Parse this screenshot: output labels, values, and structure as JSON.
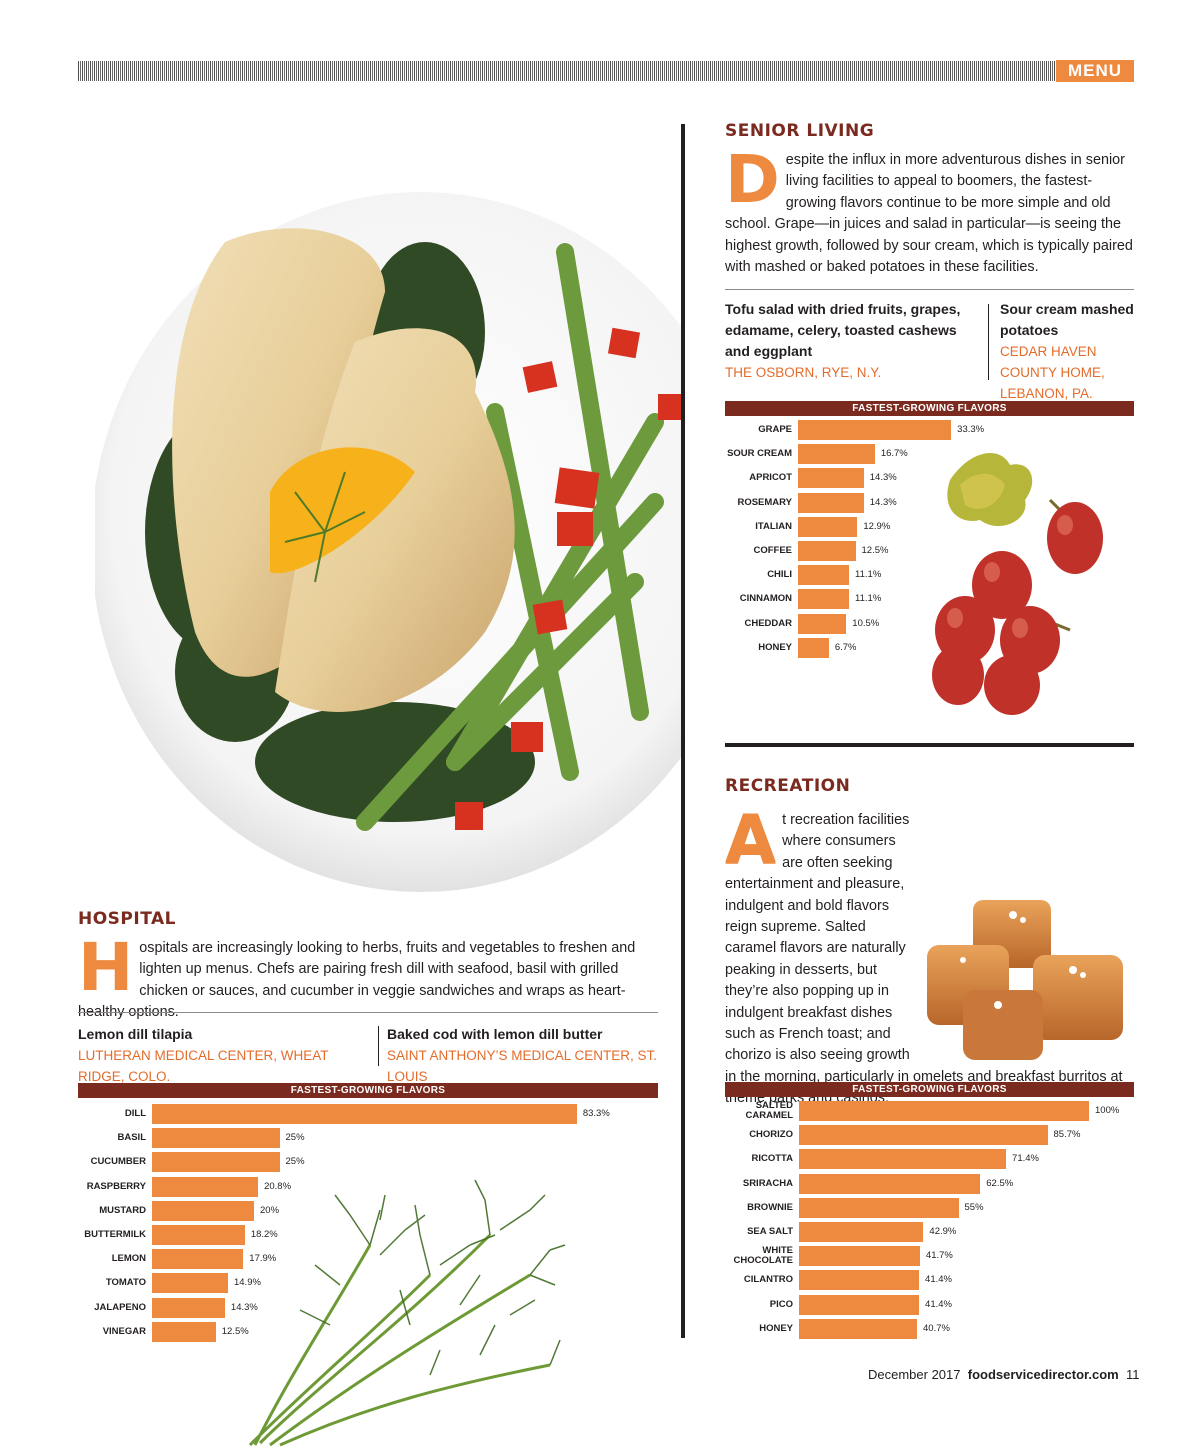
{
  "header": {
    "section_tag": "MENU"
  },
  "senior": {
    "title": "SENIOR LIVING",
    "dropcap": "D",
    "body": "espite the influx in more adventurous dishes in senior living facilities to appeal to boomers, the fastest-growing flavors continue to be more simple and old school. Grape—in juices and salad in particular—is seeing the highest growth, followed by sour cream, which is typically paired with mashed or baked potatoes in these facilities.",
    "dish1": {
      "name": "Tofu salad with dried fruits, grapes, edamame, celery, toasted cashews and eggplant",
      "place": "THE OSBORN, RYE, N.Y."
    },
    "dish2": {
      "name": "Sour cream mashed potatoes",
      "place": "CEDAR HAVEN COUNTY HOME, LEBANON, PA."
    }
  },
  "recreation": {
    "title": "RECREATION",
    "dropcap": "A",
    "body": "t recreation facilities where consumers are often seeking entertainment and pleasure, indulgent and bold flavors reign supreme. Salted caramel flavors are naturally peaking in desserts, but they’re also popping up in indulgent breakfast dishes such as French toast; and chorizo is also seeing growth in the morning, particularly in omelets and breakfast burritos at theme parks and casinos."
  },
  "hospital": {
    "title": "HOSPITAL",
    "dropcap": "H",
    "body": "ospitals are increasingly looking to herbs, fruits and vegetables to freshen and lighten up menus. Chefs are pairing fresh dill with seafood, basil with grilled chicken or sauces, and cucumber in veggie sandwiches and wraps as heart-healthy options.",
    "dish1": {
      "name": "Lemon dill tilapia",
      "place": "LUTHERAN MEDICAL CENTER, WHEAT RIDGE, COLO."
    },
    "dish2": {
      "name": "Baked cod with lemon dill butter",
      "place": "SAINT ANTHONY’S MEDICAL CENTER, ST. LOUIS"
    }
  },
  "footer": {
    "date": "December 2017",
    "site": "foodservicedirector.com",
    "page": "11"
  },
  "chart_data": [
    {
      "type": "bar",
      "orientation": "horizontal",
      "title": "FASTEST-GROWING FLAVORS",
      "categories": [
        "GRAPE",
        "SOUR CREAM",
        "APRICOT",
        "ROSEMARY",
        "ITALIAN",
        "COFFEE",
        "CHILI",
        "CINNAMON",
        "CHEDDAR",
        "HONEY"
      ],
      "values": [
        33.3,
        16.7,
        14.3,
        14.3,
        12.9,
        12.5,
        11.1,
        11.1,
        10.5,
        6.7
      ],
      "labels": [
        "33.3%",
        "16.7%",
        "14.3%",
        "14.3%",
        "12.9%",
        "12.5%",
        "11.1%",
        "11.1%",
        "10.5%",
        "6.7%"
      ],
      "xlim": [
        0,
        100
      ]
    },
    {
      "type": "bar",
      "orientation": "horizontal",
      "title": "FASTEST-GROWING FLAVORS",
      "categories": [
        "SALTED CARAMEL",
        "CHORIZO",
        "RICOTTA",
        "SRIRACHA",
        "BROWNIE",
        "SEA SALT",
        "WHITE CHOCOLATE",
        "CILANTRO",
        "PICO",
        "HONEY"
      ],
      "values": [
        100,
        85.7,
        71.4,
        62.5,
        55,
        42.9,
        41.7,
        41.4,
        41.4,
        40.7
      ],
      "labels": [
        "100%",
        "85.7%",
        "71.4%",
        "62.5%",
        "55%",
        "42.9%",
        "41.7%",
        "41.4%",
        "41.4%",
        "40.7%"
      ],
      "xlim": [
        0,
        100
      ]
    },
    {
      "type": "bar",
      "orientation": "horizontal",
      "title": "FASTEST-GROWING FLAVORS",
      "categories": [
        "DILL",
        "BASIL",
        "CUCUMBER",
        "RASPBERRY",
        "MUSTARD",
        "BUTTERMILK",
        "LEMON",
        "TOMATO",
        "JALAPENO",
        "VINEGAR"
      ],
      "values": [
        83.3,
        25,
        25,
        20.8,
        20,
        18.2,
        17.9,
        14.9,
        14.3,
        12.5
      ],
      "labels": [
        "83.3%",
        "25%",
        "25%",
        "20.8%",
        "20%",
        "18.2%",
        "17.9%",
        "14.9%",
        "14.3%",
        "12.5%"
      ],
      "xlim": [
        0,
        100
      ]
    }
  ]
}
